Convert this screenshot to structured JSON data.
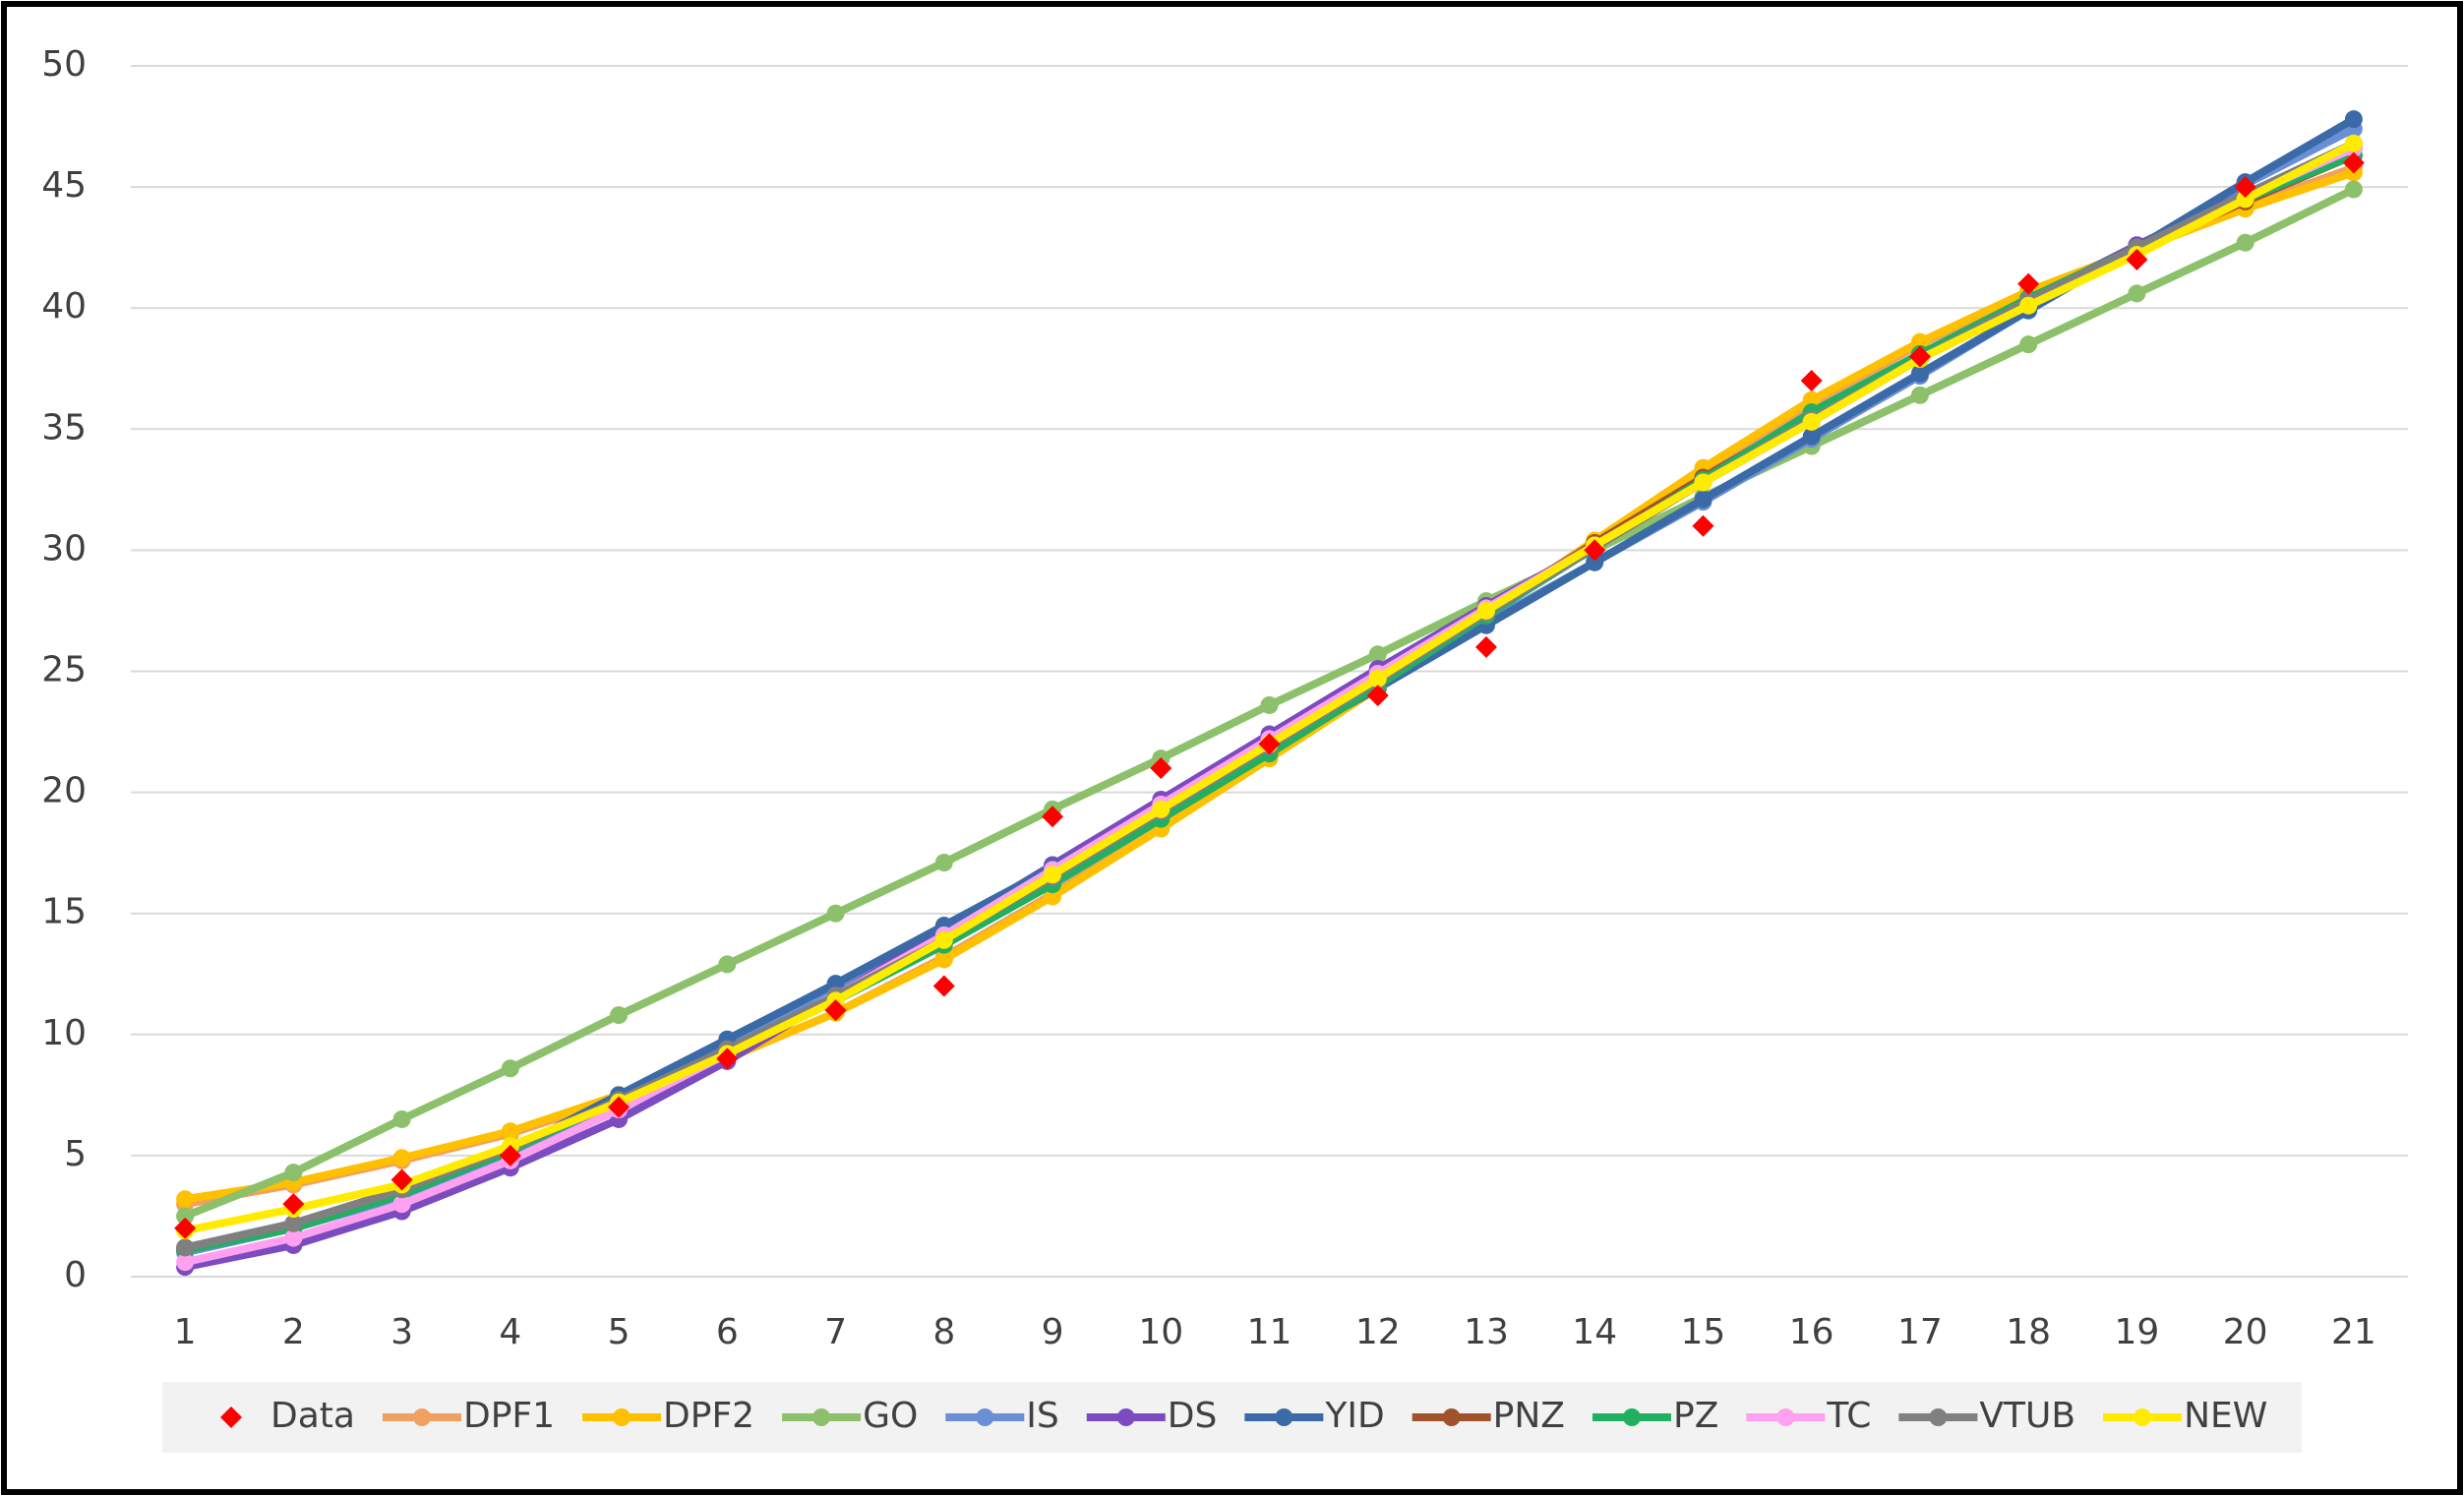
{
  "chart_data": {
    "type": "line",
    "categories": [
      "1",
      "2",
      "3",
      "4",
      "5",
      "6",
      "7",
      "8",
      "9",
      "10",
      "11",
      "12",
      "13",
      "14",
      "15",
      "16",
      "17",
      "18",
      "19",
      "20",
      "21"
    ],
    "ylim": [
      0,
      50
    ],
    "yticks": [
      0,
      5,
      10,
      15,
      20,
      25,
      30,
      35,
      40,
      45,
      50
    ],
    "grid": true,
    "legend": "bottom",
    "series": [
      {
        "name": "Data",
        "color": "#ff0000",
        "marker": "diamond",
        "line": false,
        "values": [
          2,
          3,
          4,
          5,
          7,
          9,
          11,
          12,
          19,
          21,
          22,
          24,
          26,
          30,
          31,
          37,
          38,
          41,
          42,
          45,
          46
        ]
      },
      {
        "name": "DPF1",
        "color": "#f0a060",
        "marker": "circle",
        "line": true,
        "values": [
          3.0,
          3.8,
          4.8,
          5.9,
          7.4,
          9.0,
          10.9,
          13.2,
          15.8,
          18.6,
          21.5,
          24.4,
          27.4,
          30.4,
          33.3,
          36.0,
          38.5,
          40.6,
          42.4,
          44.2,
          45.8
        ]
      },
      {
        "name": "DPF2",
        "color": "#ffc000",
        "marker": "circle",
        "line": true,
        "values": [
          3.2,
          3.9,
          4.9,
          6.0,
          7.5,
          9.0,
          10.9,
          13.1,
          15.7,
          18.5,
          21.4,
          24.3,
          27.3,
          30.4,
          33.4,
          36.2,
          38.6,
          40.7,
          42.4,
          44.1,
          45.6
        ]
      },
      {
        "name": "GO",
        "color": "#8cc06a",
        "marker": "circle",
        "line": true,
        "values": [
          2.5,
          4.3,
          6.5,
          8.6,
          10.8,
          12.9,
          15.0,
          17.1,
          19.3,
          21.4,
          23.6,
          25.7,
          27.9,
          30.0,
          32.2,
          34.3,
          36.4,
          38.5,
          40.6,
          42.7,
          44.9
        ]
      },
      {
        "name": "IS",
        "color": "#6a8fd6",
        "marker": "circle",
        "line": true,
        "values": [
          1.0,
          2.0,
          3.3,
          5.0,
          7.2,
          9.6,
          12.0,
          14.4,
          16.9,
          19.4,
          22.0,
          24.5,
          27.0,
          29.5,
          32.0,
          34.6,
          37.2,
          39.9,
          42.5,
          45.1,
          47.4
        ]
      },
      {
        "name": "DS",
        "color": "#7a4cc0",
        "marker": "circle",
        "line": true,
        "values": [
          0.4,
          1.3,
          2.7,
          4.5,
          6.5,
          8.9,
          11.6,
          14.3,
          17.0,
          19.7,
          22.4,
          25.1,
          27.7,
          30.2,
          32.8,
          35.3,
          37.9,
          40.3,
          42.6,
          44.7,
          46.6
        ]
      },
      {
        "name": "YID",
        "color": "#3a6aa8",
        "marker": "circle",
        "line": true,
        "values": [
          1.1,
          2.0,
          3.4,
          5.2,
          7.5,
          9.8,
          12.1,
          14.5,
          16.9,
          19.3,
          21.8,
          24.3,
          26.9,
          29.5,
          32.1,
          34.7,
          37.3,
          39.9,
          42.5,
          45.2,
          47.8
        ]
      },
      {
        "name": "PNZ",
        "color": "#a0522d",
        "marker": "circle",
        "line": true,
        "values": [
          1.2,
          2.1,
          3.5,
          5.3,
          7.3,
          9.3,
          11.5,
          13.8,
          16.4,
          19.0,
          21.8,
          24.6,
          27.5,
          30.3,
          33.0,
          35.6,
          38.1,
          40.3,
          42.4,
          44.4,
          46.3
        ]
      },
      {
        "name": "PZ",
        "color": "#20b060",
        "marker": "circle",
        "line": true,
        "values": [
          1.1,
          2.0,
          3.4,
          5.2,
          7.3,
          9.3,
          11.4,
          13.7,
          16.2,
          18.9,
          21.6,
          24.4,
          27.3,
          30.1,
          32.9,
          35.7,
          38.1,
          40.4,
          42.5,
          44.5,
          46.3
        ]
      },
      {
        "name": "TC",
        "color": "#ffa0f0",
        "marker": "circle",
        "line": true,
        "values": [
          0.6,
          1.6,
          3.0,
          4.8,
          6.9,
          9.2,
          11.6,
          14.1,
          16.8,
          19.5,
          22.2,
          24.9,
          27.6,
          30.2,
          32.8,
          35.4,
          37.9,
          40.2,
          42.4,
          44.6,
          46.6
        ]
      },
      {
        "name": "VTUB",
        "color": "#808080",
        "marker": "circle",
        "line": true,
        "values": [
          1.2,
          2.2,
          3.6,
          5.3,
          7.3,
          9.4,
          11.6,
          13.9,
          16.5,
          19.2,
          21.9,
          24.6,
          27.4,
          30.1,
          32.8,
          35.4,
          37.9,
          40.3,
          42.5,
          44.7,
          46.8
        ]
      },
      {
        "name": "NEW",
        "color": "#ffeb00",
        "marker": "circle",
        "line": true,
        "values": [
          1.9,
          2.8,
          3.8,
          5.4,
          7.2,
          9.2,
          11.4,
          13.9,
          16.6,
          19.3,
          22.0,
          24.7,
          27.5,
          30.2,
          32.8,
          35.3,
          37.9,
          40.1,
          42.2,
          44.5,
          46.8
        ]
      }
    ]
  }
}
